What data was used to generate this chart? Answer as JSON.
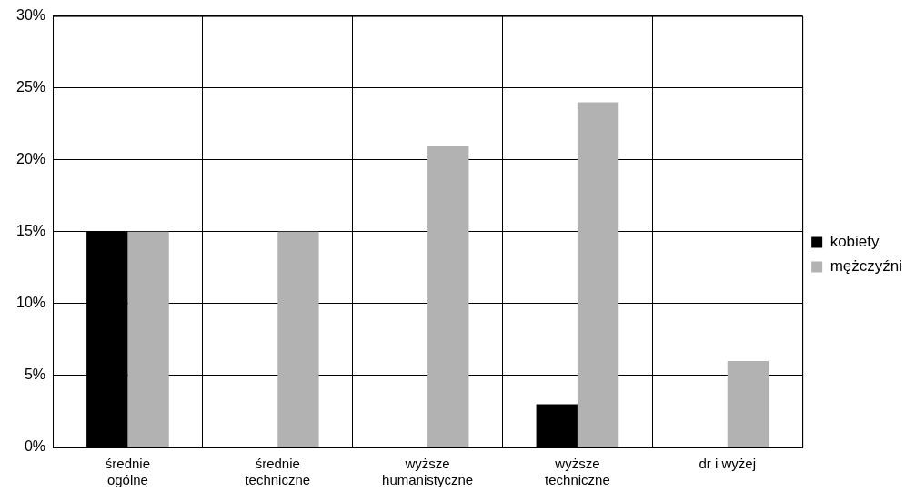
{
  "chart_data": {
    "type": "bar",
    "categories": [
      "średnie\nogólne",
      "średnie\ntechniczne",
      "wyższe\nhumanistyczne",
      "wyższe\ntechniczne",
      "dr i wyżej"
    ],
    "series": [
      {
        "name": "kobiety",
        "color": "#000000",
        "values": [
          15,
          0,
          0,
          3,
          0
        ]
      },
      {
        "name": "mężczyźni",
        "color": "#b2b2b2",
        "values": [
          15,
          15,
          21,
          24,
          6
        ]
      }
    ],
    "ylim": [
      0,
      30
    ],
    "yticks": [
      {
        "value": 0,
        "label": "0%"
      },
      {
        "value": 5,
        "label": "5%"
      },
      {
        "value": 10,
        "label": "10%"
      },
      {
        "value": 15,
        "label": "15%"
      },
      {
        "value": 20,
        "label": "20%"
      },
      {
        "value": 25,
        "label": "25%"
      },
      {
        "value": 30,
        "label": "30%"
      }
    ],
    "grid": true,
    "legend": "right"
  }
}
